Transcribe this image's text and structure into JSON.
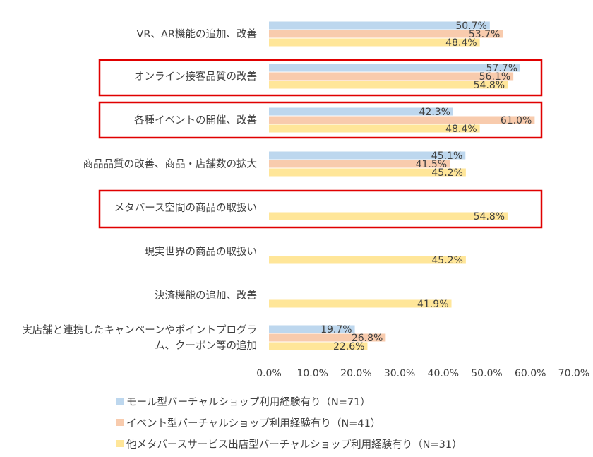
{
  "chart_data": {
    "type": "bar",
    "orientation": "horizontal",
    "categories": [
      "VR、AR機能の追加、改善",
      "オンライン接客品質の改善",
      "各種イベントの開催、改善",
      "商品品質の改善、商品・店舗数の拡大",
      "メタバース空間の商品の取扱い",
      "現実世界の商品の取扱い",
      "決済機能の追加、改善",
      [
        "実店舗と連携したキャンペーンやポイントプログラ",
        "ム、クーポン等の追加"
      ]
    ],
    "series": [
      {
        "name": "モール型バーチャルショップ利用経験有り（N=71）",
        "color": "#bdd7ee",
        "values": [
          50.7,
          57.7,
          42.3,
          45.1,
          null,
          null,
          null,
          19.7
        ],
        "labels": [
          "50.7%",
          "57.7%",
          "42.3%",
          "45.1%",
          null,
          null,
          null,
          "19.7%"
        ]
      },
      {
        "name": "イベント型バーチャルショップ利用経験有り（N=41）",
        "color": "#f8cbad",
        "values": [
          53.7,
          56.1,
          61.0,
          41.5,
          null,
          null,
          null,
          26.8
        ],
        "labels": [
          "53.7%",
          "56.1%",
          "61.0%",
          "41.5%",
          null,
          null,
          null,
          "26.8%"
        ]
      },
      {
        "name": "他メタバースサービス出店型バーチャルショップ利用経験有り（N=31）",
        "color": "#ffe699",
        "values": [
          48.4,
          54.8,
          48.4,
          45.2,
          54.8,
          45.2,
          41.9,
          22.6
        ],
        "labels": [
          "48.4%",
          "54.8%",
          "48.4%",
          "45.2%",
          "54.8%",
          "45.2%",
          "41.9%",
          "22.6%"
        ]
      }
    ],
    "xlim": [
      0,
      70
    ],
    "x_ticks": [
      "0.0%",
      "10.0%",
      "20.0%",
      "30.0%",
      "40.0%",
      "50.0%",
      "60.0%",
      "70.0%"
    ],
    "grid": false,
    "legend_position": "bottom",
    "highlighted_categories": [
      1,
      2,
      4
    ],
    "highlight_color": "#e00000"
  }
}
